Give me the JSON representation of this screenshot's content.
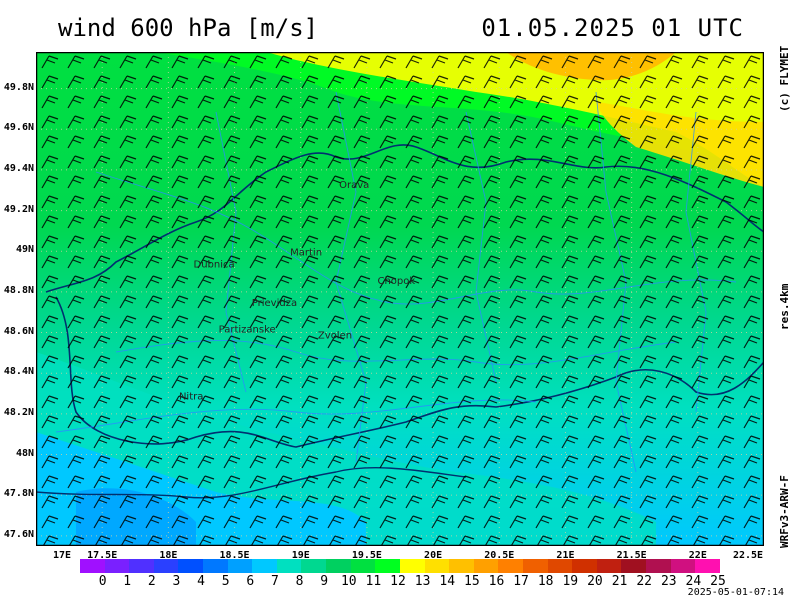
{
  "title": "wind 600 hPa [m/s]",
  "datetime": "01.05.2025   01 UTC",
  "credit": "(c) FLYMET",
  "resolution": "res.4km",
  "model": "WRFv3-ARW-F",
  "generated": "2025-05-01-07:14",
  "lat_labels": [
    "49.8N",
    "49.6N",
    "49.4N",
    "49.2N",
    "49N",
    "48.8N",
    "48.6N",
    "48.4N",
    "48.2N",
    "48N",
    "47.8N",
    "47.6N"
  ],
  "lon_labels": [
    "17E",
    "17.5E",
    "18E",
    "18.5E",
    "19E",
    "19.5E",
    "20E",
    "20.5E",
    "21E",
    "21.5E",
    "22E",
    "22.5E"
  ],
  "cities": [
    {
      "name": "Orava",
      "lon": 19.29,
      "lat": 49.31
    },
    {
      "name": "Martin",
      "lon": 18.92,
      "lat": 48.98
    },
    {
      "name": "Dubnica",
      "lon": 18.19,
      "lat": 48.92
    },
    {
      "name": "Chopok",
      "lon": 19.58,
      "lat": 48.84
    },
    {
      "name": "Prievidza",
      "lon": 18.63,
      "lat": 48.73
    },
    {
      "name": "Partizanske",
      "lon": 18.38,
      "lat": 48.6
    },
    {
      "name": "Zvolen",
      "lon": 19.13,
      "lat": 48.57
    },
    {
      "name": "Nitra",
      "lon": 18.08,
      "lat": 48.27
    }
  ],
  "legend": {
    "labels": [
      "0",
      "1",
      "2",
      "3",
      "4",
      "5",
      "6",
      "7",
      "8",
      "9",
      "10",
      "11",
      "12",
      "13",
      "14",
      "15",
      "16",
      "17",
      "18",
      "19",
      "20",
      "21",
      "22",
      "23",
      "24",
      "25"
    ],
    "colors": [
      "#a010ff",
      "#7a20ff",
      "#5030ff",
      "#2a40ff",
      "#0050ff",
      "#0078ff",
      "#00a0ff",
      "#00c8ff",
      "#00e0c0",
      "#00d890",
      "#00d060",
      "#00e040",
      "#00ff20",
      "#ffff00",
      "#ffe000",
      "#ffc000",
      "#ffa000",
      "#ff8000",
      "#f06000",
      "#e04800",
      "#d03000",
      "#c02010",
      "#a01020",
      "#b01050",
      "#d01080",
      "#ff10b0"
    ]
  }
}
